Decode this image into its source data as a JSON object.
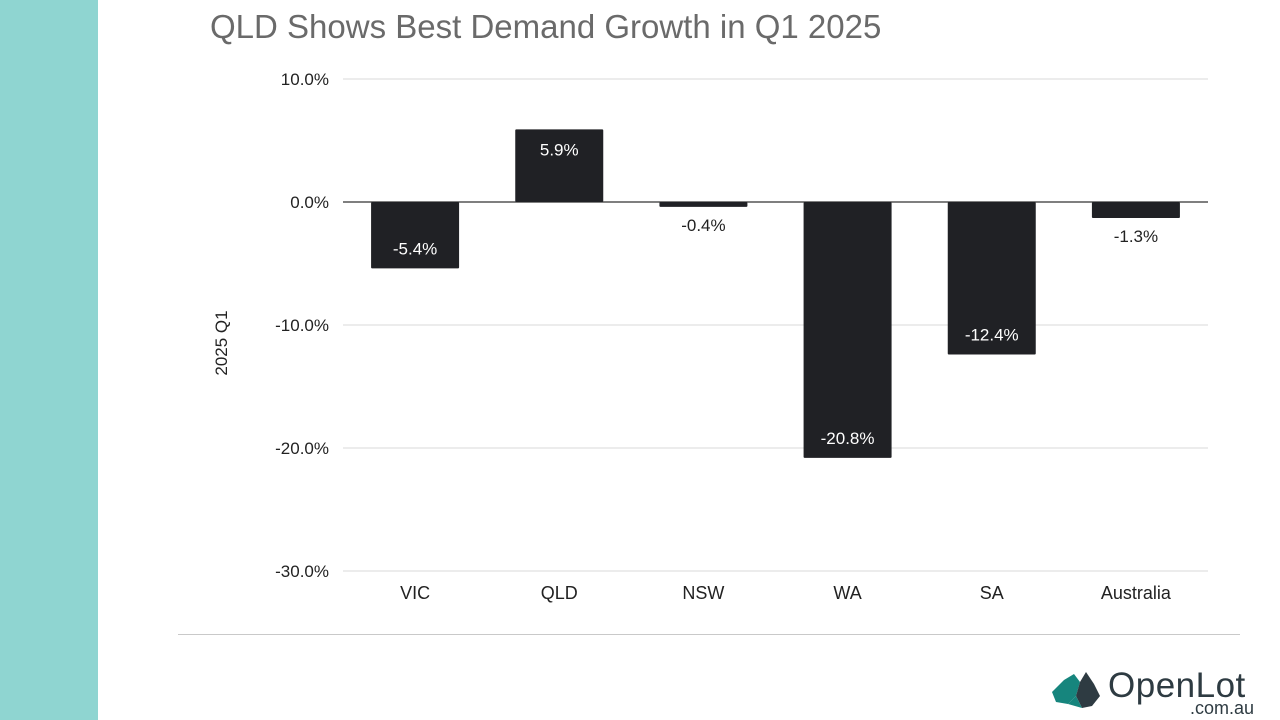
{
  "colors": {
    "side_stripe": "#8fd5d1",
    "bar": "#202125",
    "bar_label_inside": "#ffffff",
    "bar_label_outside": "#222222",
    "title": "#6a6a6a",
    "logo_green": "#16857d",
    "logo_dark": "#2e3b42"
  },
  "logo": {
    "icon": "australia-map-icon",
    "brand": "OpenLot",
    "domain": ".com.au"
  },
  "chart_data": {
    "type": "bar",
    "title": "QLD Shows Best Demand Growth in Q1 2025",
    "xlabel": "",
    "ylabel": "2025 Q1",
    "ylim": [
      -30,
      10
    ],
    "yticks": [
      10,
      0,
      -10,
      -20,
      -30
    ],
    "ytick_labels": [
      "10.0%",
      "0.0%",
      "-10.0%",
      "-20.0%",
      "-30.0%"
    ],
    "grid": true,
    "legend": "none",
    "categories": [
      "VIC",
      "QLD",
      "NSW",
      "WA",
      "SA",
      "Australia"
    ],
    "values": [
      -5.4,
      5.9,
      -0.4,
      -20.8,
      -12.4,
      -1.3
    ],
    "data_labels": [
      "-5.4%",
      "5.9%",
      "-0.4%",
      "-20.8%",
      "-12.4%",
      "-1.3%"
    ]
  }
}
